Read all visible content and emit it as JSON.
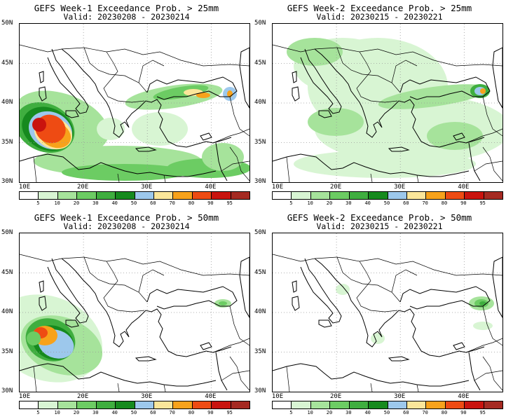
{
  "panels": [
    {
      "title": "GEFS Week-1 Exceedance Prob. > 25mm",
      "valid": "Valid: 20230208 - 20230214",
      "variant": "w1_25"
    },
    {
      "title": "GEFS Week-2 Exceedance Prob. > 25mm",
      "valid": "Valid: 20230215 - 20230221",
      "variant": "w2_25"
    },
    {
      "title": "GEFS Week-1 Exceedance Prob. > 50mm",
      "valid": "Valid: 20230208 - 20230214",
      "variant": "w1_50"
    },
    {
      "title": "GEFS Week-2 Exceedance Prob. > 50mm",
      "valid": "Valid: 20230215 - 20230221",
      "variant": "w2_50"
    }
  ],
  "lat_labels": [
    "50N",
    "45N",
    "40N",
    "35N",
    "30N"
  ],
  "lon_labels": [
    "10E",
    "20E",
    "30E",
    "40E"
  ],
  "colorbar": {
    "labels": [
      "5",
      "10",
      "20",
      "30",
      "40",
      "50",
      "60",
      "70",
      "80",
      "90",
      "95"
    ],
    "colors": [
      "#ffffff",
      "#d8f5d3",
      "#a6e39b",
      "#6ccc63",
      "#3fae3f",
      "#168a1e",
      "#9dc8ec",
      "#fbe69a",
      "#f7a21b",
      "#ee4b13",
      "#c9130e",
      "#a52a22"
    ]
  }
}
